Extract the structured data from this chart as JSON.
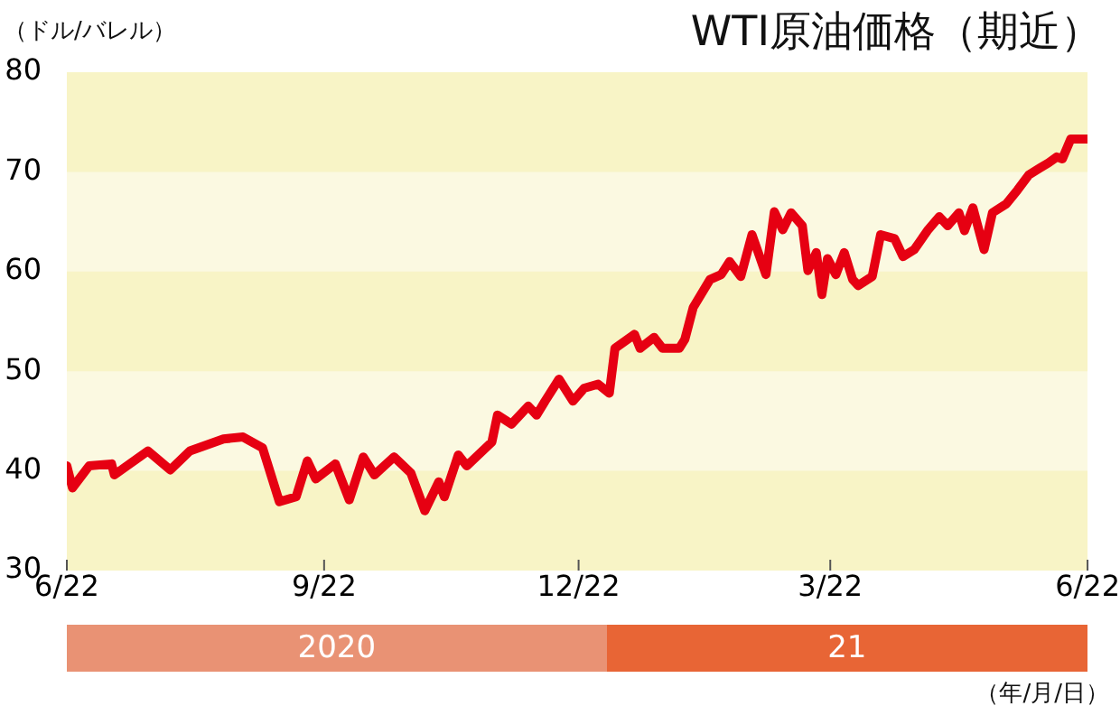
{
  "chart_data": {
    "type": "line",
    "title": "WTI原油価格（期近）",
    "ylabel": "（ドル/バレル）",
    "xlabel": "（年/月/日）",
    "x": [
      "2020-06-22",
      "2020-06-24",
      "2020-06-30",
      "2020-07-08",
      "2020-07-09",
      "2020-07-21",
      "2020-07-29",
      "2020-08-05",
      "2020-08-17",
      "2020-08-24",
      "2020-08-31",
      "2020-09-06",
      "2020-09-12",
      "2020-09-16",
      "2020-09-19",
      "2020-09-26",
      "2020-10-01",
      "2020-10-06",
      "2020-10-10",
      "2020-10-17",
      "2020-10-23",
      "2020-10-28",
      "2020-11-02",
      "2020-11-04",
      "2020-11-09",
      "2020-11-12",
      "2020-11-21",
      "2020-11-23",
      "2020-11-28",
      "2020-12-04",
      "2020-12-07",
      "2020-12-10",
      "2020-12-15",
      "2020-12-20",
      "2020-12-24",
      "2020-12-29",
      "2021-01-02",
      "2021-01-04",
      "2021-01-05",
      "2021-01-11",
      "2021-01-13",
      "2021-01-18",
      "2021-01-21",
      "2021-01-27",
      "2021-01-29",
      "2021-02-01",
      "2021-02-07",
      "2021-02-11",
      "2021-02-14",
      "2021-02-18",
      "2021-02-22",
      "2021-02-27",
      "2021-03-02",
      "2021-03-05",
      "2021-03-08",
      "2021-03-12",
      "2021-03-14",
      "2021-03-17",
      "2021-03-19",
      "2021-03-21",
      "2021-03-24",
      "2021-03-27",
      "2021-03-30",
      "2021-04-01",
      "2021-04-06",
      "2021-04-09",
      "2021-04-14",
      "2021-04-17",
      "2021-04-21",
      "2021-04-26",
      "2021-04-30",
      "2021-05-03",
      "2021-05-07",
      "2021-05-09",
      "2021-05-12",
      "2021-05-16",
      "2021-05-19",
      "2021-05-24",
      "2021-05-28",
      "2021-06-01",
      "2021-06-05",
      "2021-06-08",
      "2021-06-11",
      "2021-06-13",
      "2021-06-16",
      "2021-06-22"
    ],
    "series": [
      {
        "color": "#e60012",
        "values": [
          40.5,
          38.3,
          40.5,
          40.7,
          39.6,
          42,
          40.1,
          42,
          43.2,
          43.4,
          42.3,
          36.9,
          37.4,
          41,
          39.2,
          40.7,
          37.1,
          41.4,
          39.6,
          41.4,
          39.8,
          36,
          38.9,
          37.4,
          41.6,
          40.5,
          42.9,
          45.6,
          44.7,
          46.5,
          45.6,
          47,
          49.2,
          47,
          48.3,
          48.7,
          47.8,
          52.3,
          52.5,
          53.7,
          52.3,
          53.4,
          52.3,
          52.3,
          53.2,
          56.4,
          59.2,
          59.7,
          61,
          59.5,
          63.7,
          59.7,
          66,
          64.2,
          65.9,
          64.6,
          60.1,
          61.9,
          57.7,
          61.3,
          59.7,
          61.9,
          59.2,
          58.6,
          59.5,
          63.7,
          63.3,
          61.5,
          62.2,
          64.2,
          65.5,
          64.6,
          65.9,
          64.1,
          66.4,
          62.2,
          65.9,
          66.8,
          68.2,
          69.7,
          70.4,
          70.9,
          71.5,
          71.3,
          73.3,
          73.3
        ]
      }
    ],
    "xlim": [
      "2020-06-22",
      "2021-06-22"
    ],
    "xticks": [
      {
        "value": "2020-06-22",
        "label": "6/22"
      },
      {
        "value": "2020-09-22",
        "label": "9/22"
      },
      {
        "value": "2020-12-22",
        "label": "12/22"
      },
      {
        "value": "2021-03-22",
        "label": "3/22"
      },
      {
        "value": "2021-06-22",
        "label": "6/22"
      }
    ],
    "ylim": [
      30,
      80
    ],
    "yticks": [
      30,
      40,
      50,
      60,
      70,
      80
    ],
    "marker": "none",
    "line_style": "solid",
    "bands": [
      {
        "axis": "y",
        "from": 30,
        "to": 40,
        "color": "#f8f4c6"
      },
      {
        "axis": "y",
        "from": 50,
        "to": 60,
        "color": "#f8f4c6"
      },
      {
        "axis": "y",
        "from": 70,
        "to": 80,
        "color": "#f8f4c6"
      }
    ],
    "annotations": [
      "2020",
      "21"
    ]
  }
}
